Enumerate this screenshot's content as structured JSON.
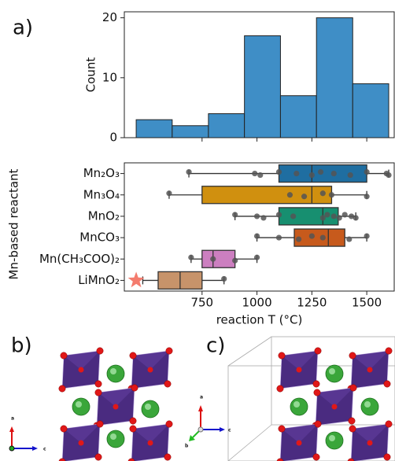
{
  "figure": {
    "panel_labels": [
      "a)",
      "b)",
      "c)"
    ],
    "b_axes": [
      "a",
      "c"
    ],
    "c_axes": [
      "a",
      "b",
      "c"
    ]
  },
  "chart_data": [
    {
      "type": "histogram",
      "ylabel": "Count",
      "color": "#3f8ec6",
      "bins": [
        450,
        614,
        779,
        943,
        1107,
        1271,
        1436,
        1600
      ],
      "values": [
        3,
        2,
        4,
        17,
        7,
        20,
        9
      ],
      "xlim": [
        396,
        1625
      ],
      "xticks": [
        750,
        1000,
        1250,
        1500
      ],
      "ylim": [
        0,
        21
      ],
      "yticks": [
        0,
        10,
        20
      ]
    },
    {
      "type": "box",
      "xlabel": "reaction T (°C)",
      "ylabel": "Mn-based reactant",
      "xlim": [
        396,
        1625
      ],
      "xticks": [
        750,
        1000,
        1250,
        1500
      ],
      "categories": [
        "Mn₂O₃",
        "Mn₃O₄",
        "MnO₂",
        "MnCO₃",
        "Mn(CH₃COO)₂",
        "LiMnO₂"
      ],
      "boxes": [
        {
          "color": "#1f6ea1",
          "low": 690,
          "q1": 1100,
          "median": 1250,
          "q3": 1500,
          "high": 1600,
          "points": [
            690,
            990,
            1015,
            1100,
            1180,
            1250,
            1290,
            1350,
            1425,
            1500,
            1590,
            1600
          ]
        },
        {
          "color": "#d0900f",
          "low": 600,
          "q1": 750,
          "median": 1250,
          "q3": 1340,
          "high": 1500,
          "points": [
            600,
            1150,
            1215,
            1300,
            1340,
            1500
          ]
        },
        {
          "color": "#178f70",
          "low": 900,
          "q1": 1100,
          "median": 1300,
          "q3": 1370,
          "high": 1450,
          "points": [
            900,
            1000,
            1030,
            1100,
            1165,
            1300,
            1320,
            1350,
            1375,
            1400,
            1430,
            1450
          ]
        },
        {
          "color": "#c75a1c",
          "low": 1000,
          "q1": 1170,
          "median": 1325,
          "q3": 1400,
          "high": 1500,
          "points": [
            1000,
            1100,
            1190,
            1250,
            1300,
            1420,
            1500
          ]
        },
        {
          "color": "#cc7fc0",
          "low": 700,
          "q1": 750,
          "median": 800,
          "q3": 900,
          "high": 1000,
          "points": [
            700,
            800,
            900,
            1000
          ]
        },
        {
          "color": "#c7936a",
          "low": 480,
          "q1": 550,
          "median": 650,
          "q3": 750,
          "high": 850,
          "points": [
            850
          ]
        }
      ],
      "star": {
        "value": 450,
        "row": 5,
        "color": "#f47c6e"
      }
    }
  ]
}
